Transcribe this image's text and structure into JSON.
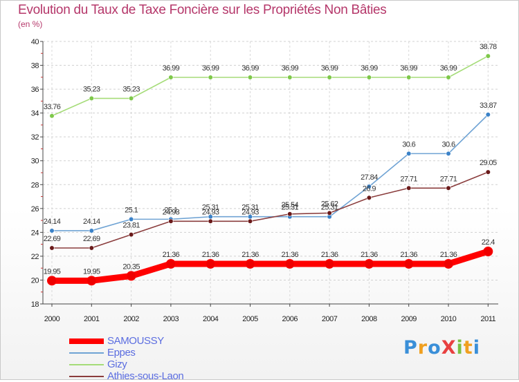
{
  "chart_data": {
    "type": "line",
    "title": "Evolution du Taux de Taxe Foncière sur les Propriétés Non Bâties",
    "ylabel": "(en %)",
    "xlabel": "",
    "ylim": [
      18,
      40
    ],
    "yticks": [
      18,
      20,
      22,
      24,
      26,
      28,
      30,
      32,
      34,
      36,
      38,
      40
    ],
    "categories": [
      "2000",
      "2001",
      "2002",
      "2003",
      "2004",
      "2005",
      "2006",
      "2007",
      "2008",
      "2009",
      "2010",
      "2011"
    ],
    "series": [
      {
        "name": "SAMOUSSY",
        "color": "#ff0000",
        "marker_color": "#ee0000",
        "values": [
          19.95,
          19.95,
          20.35,
          21.36,
          21.36,
          21.36,
          21.36,
          21.36,
          21.36,
          21.36,
          21.36,
          22.4
        ],
        "labels": [
          "19.95",
          "19.95",
          "20.35",
          "21.36",
          "21.36",
          "21.36",
          "21.36",
          "21.36",
          "21.36",
          "21.36",
          "21.36",
          "22.4"
        ]
      },
      {
        "name": "Eppes",
        "color": "#6fa3d4",
        "marker_color": "#3b82c8",
        "values": [
          24.14,
          24.14,
          25.1,
          25.1,
          25.31,
          25.31,
          25.31,
          25.31,
          27.84,
          30.6,
          30.6,
          33.87
        ],
        "labels": [
          "24.14",
          "24.14",
          "25.1",
          "25.1",
          "25.31",
          "25.31",
          "25.31",
          "25.31",
          "27.84",
          "30.6",
          "30.6",
          "33.87"
        ]
      },
      {
        "name": "Gizy",
        "color": "#a5dc78",
        "marker_color": "#7ec84a",
        "values": [
          33.76,
          35.23,
          35.23,
          36.99,
          36.99,
          36.99,
          36.99,
          36.99,
          36.99,
          36.99,
          36.99,
          38.78
        ],
        "labels": [
          "33.76",
          "35.23",
          "35.23",
          "36.99",
          "36.99",
          "36.99",
          "36.99",
          "36.99",
          "36.99",
          "36.99",
          "36.99",
          "38.78"
        ]
      },
      {
        "name": "Athies-sous-Laon",
        "color": "#8a3c3c",
        "marker_color": "#6a1a1a",
        "values": [
          22.69,
          22.69,
          23.81,
          24.93,
          24.93,
          24.93,
          25.54,
          25.62,
          26.9,
          27.71,
          27.71,
          29.05
        ],
        "labels": [
          "22.69",
          "22.69",
          "23.81",
          "24.93",
          "24.93",
          "24.93",
          "25.54",
          "25.62",
          "26.9",
          "27.71",
          "27.71",
          "29.05"
        ]
      }
    ],
    "legend_position": "bottom-left"
  },
  "logo": {
    "text": "ProXiti"
  }
}
